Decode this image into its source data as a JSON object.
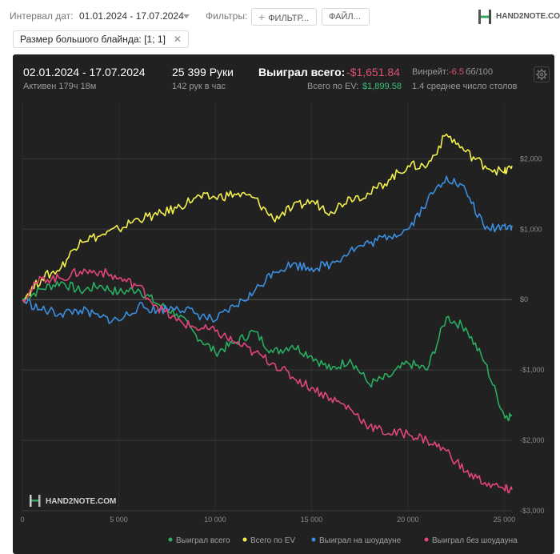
{
  "filters": {
    "date_interval_label": "Интервал дат:",
    "date_interval_value": "01.01.2024 - 17.07.2024",
    "filters_label": "Фильтры:",
    "filter_button": "ФИЛЬТР...",
    "file_button": "ФАЙЛ...",
    "chip_label": "Размер большого блайнда: [1; 1]"
  },
  "brand": {
    "name": "HAND2NOTE.COM"
  },
  "summary": {
    "date_range": "02.01.2024 - 17.07.2024",
    "active": "Активен 179ч 18м",
    "hands": "25 399 Руки",
    "hands_per_hour": "142 рук в час",
    "won_total_label": "Выиграл всего:",
    "won_total_value": "-$1,651.84",
    "ev_label": "Всего по EV:",
    "ev_value": "$1,899.58",
    "winrate_label": "Винрейт:",
    "winrate_value": "-6.5",
    "winrate_unit": "бб/100",
    "tables_avg": "1.4 среднее число столов"
  },
  "colors": {
    "won_total": "#27ae60",
    "ev": "#f4f04e",
    "showdown": "#3a8fe0",
    "no_showdown": "#e2457a",
    "negative": "#e0506f",
    "positive": "#3cbf7a"
  },
  "chart_data": {
    "type": "line",
    "xlim": [
      0,
      25399
    ],
    "ylim": [
      -3000,
      2800
    ],
    "x_ticks": [
      0,
      5000,
      10000,
      15000,
      20000,
      25000
    ],
    "x_tick_labels": [
      "0",
      "5 000",
      "10 000",
      "15 000",
      "20 000",
      "25 000"
    ],
    "y_ticks": [
      2000,
      1000,
      0,
      -1000,
      -2000,
      -3000
    ],
    "y_tick_labels": [
      "$2,000",
      "$1,000",
      "$0",
      "-$1,000",
      "-$2,000",
      "-$3,000"
    ],
    "grid": true,
    "legend_position": "bottom",
    "x": [
      0,
      1000,
      2000,
      3000,
      4000,
      5000,
      6000,
      7000,
      8000,
      9000,
      10000,
      11000,
      12000,
      13000,
      14000,
      15000,
      16000,
      17000,
      18000,
      19000,
      20000,
      21000,
      22000,
      23000,
      24000,
      25000,
      25399
    ],
    "series": [
      {
        "name": "Выиграл всего",
        "color_key": "won_total",
        "values": [
          0,
          150,
          250,
          120,
          200,
          100,
          150,
          -60,
          -200,
          -500,
          -750,
          -620,
          -450,
          -750,
          -650,
          -800,
          -1000,
          -850,
          -1200,
          -1100,
          -900,
          -1000,
          -250,
          -400,
          -900,
          -1650,
          -1650
        ]
      },
      {
        "name": "Всего по EV",
        "color_key": "ev",
        "values": [
          0,
          300,
          450,
          850,
          900,
          1000,
          1150,
          1200,
          1300,
          1450,
          1450,
          1500,
          1450,
          1150,
          1300,
          1400,
          1250,
          1450,
          1500,
          1700,
          1900,
          1900,
          2350,
          2100,
          1900,
          1800,
          1900
        ]
      },
      {
        "name": "Выиграл на шоудауне",
        "color_key": "showdown",
        "values": [
          0,
          -150,
          -200,
          -150,
          -250,
          -300,
          -100,
          -150,
          -100,
          -200,
          -300,
          -100,
          100,
          400,
          500,
          450,
          500,
          700,
          800,
          900,
          1000,
          1400,
          1750,
          1550,
          1000,
          1050,
          1050
        ]
      },
      {
        "name": "Выиграл без шоудауна",
        "color_key": "no_showdown",
        "values": [
          0,
          300,
          300,
          400,
          400,
          300,
          200,
          -100,
          -300,
          -400,
          -450,
          -600,
          -750,
          -900,
          -1100,
          -1250,
          -1400,
          -1550,
          -1800,
          -1900,
          -1900,
          -2000,
          -2150,
          -2450,
          -2600,
          -2700,
          -2700
        ]
      }
    ]
  }
}
